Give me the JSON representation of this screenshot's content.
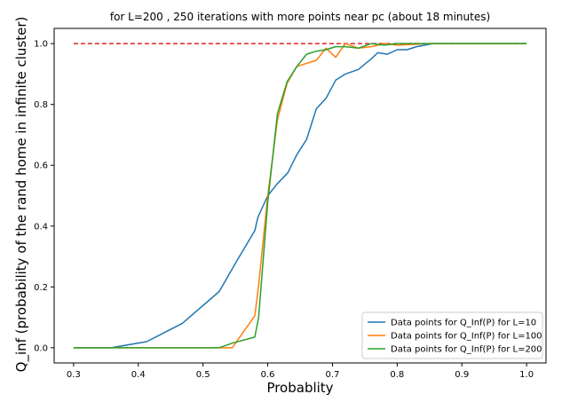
{
  "chart_data": {
    "type": "line",
    "title": "for L=200 , 250 iterations with more points near pc (about 18 minutes)",
    "xlabel": "Probablity",
    "ylabel": "Q_inf (probability of the rand home in infinite cluster)",
    "xlim": [
      0.27,
      1.03
    ],
    "ylim": [
      -0.05,
      1.05
    ],
    "xticks": [
      0.3,
      0.4,
      0.5,
      0.6,
      0.7,
      0.8,
      0.9,
      1.0
    ],
    "xtick_labels": [
      "0.3",
      "0.4",
      "0.5",
      "0.6",
      "0.7",
      "0.8",
      "0.9",
      "1.0"
    ],
    "yticks": [
      0.0,
      0.2,
      0.4,
      0.6,
      0.8,
      1.0
    ],
    "ytick_labels": [
      "0.0",
      "0.2",
      "0.4",
      "0.6",
      "0.8",
      "1.0"
    ],
    "grid": false,
    "legend_position": "lower-right",
    "reference_line": {
      "y": 1.0,
      "x_range": [
        0.3,
        1.0
      ],
      "color": "#d62728",
      "style": "dashed"
    },
    "series": [
      {
        "name": "Data points for Q_Inf(P) for L=10",
        "color": "#1f77b4",
        "x": [
          0.3,
          0.358,
          0.413,
          0.468,
          0.525,
          0.552,
          0.58,
          0.585,
          0.6,
          0.615,
          0.631,
          0.645,
          0.66,
          0.675,
          0.69,
          0.705,
          0.72,
          0.74,
          0.76,
          0.77,
          0.785,
          0.8,
          0.815,
          0.83,
          0.855,
          0.88,
          0.9,
          1.0
        ],
        "y": [
          0.0,
          0.0,
          0.02,
          0.08,
          0.185,
          0.285,
          0.385,
          0.43,
          0.5,
          0.54,
          0.575,
          0.635,
          0.685,
          0.785,
          0.82,
          0.88,
          0.9,
          0.915,
          0.95,
          0.97,
          0.965,
          0.98,
          0.98,
          0.99,
          1.0,
          1.0,
          1.0,
          1.0
        ]
      },
      {
        "name": "Data points for Q_Inf(P) for L=100",
        "color": "#ff7f0e",
        "x": [
          0.3,
          0.45,
          0.525,
          0.545,
          0.58,
          0.586,
          0.6,
          0.615,
          0.63,
          0.645,
          0.675,
          0.69,
          0.705,
          0.72,
          0.74,
          0.76,
          0.78,
          0.8,
          0.85,
          0.9,
          1.0
        ],
        "y": [
          0.0,
          0.0,
          0.0,
          0.0,
          0.105,
          0.205,
          0.5,
          0.75,
          0.87,
          0.925,
          0.945,
          0.985,
          0.955,
          1.0,
          0.985,
          0.99,
          1.0,
          0.995,
          1.0,
          1.0,
          1.0
        ]
      },
      {
        "name": "Data points for Q_Inf(P) for L=200",
        "color": "#2ca02c",
        "x": [
          0.3,
          0.45,
          0.525,
          0.545,
          0.58,
          0.586,
          0.6,
          0.615,
          0.63,
          0.645,
          0.66,
          0.675,
          0.69,
          0.705,
          0.72,
          0.74,
          0.76,
          0.78,
          0.8,
          0.85,
          0.9,
          1.0
        ],
        "y": [
          0.0,
          0.0,
          0.0,
          0.015,
          0.035,
          0.1,
          0.48,
          0.77,
          0.875,
          0.925,
          0.965,
          0.975,
          0.98,
          0.99,
          0.99,
          0.985,
          1.0,
          0.995,
          1.0,
          1.0,
          1.0,
          1.0
        ]
      }
    ]
  }
}
